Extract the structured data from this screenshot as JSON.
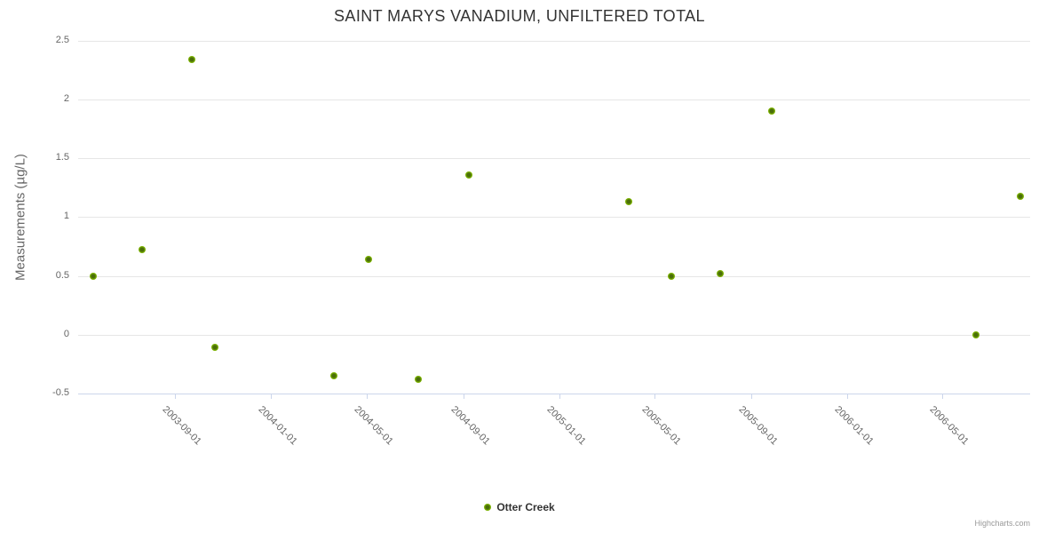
{
  "chart": {
    "title": "SAINT MARYS VANADIUM, UNFILTERED TOTAL",
    "credit": "Highcharts.com"
  },
  "legend": {
    "items": [
      {
        "label": "Otter Creek",
        "marker": "green-dot-icon"
      }
    ]
  },
  "colors": {
    "title_text": "#333333",
    "axis_label_text": "#666666",
    "gridline": "#e6e6e6",
    "axis_line": "#ccd6eb",
    "marker_outer": "#7db300",
    "marker_inner": "#4a6e0a",
    "legend_text": "#333333",
    "credit_text": "#999999"
  },
  "chart_data": {
    "type": "scatter",
    "title": "SAINT MARYS VANADIUM, UNFILTERED TOTAL",
    "xlabel": "",
    "ylabel": "Measurements (µg/L)",
    "ylim": [
      -0.5,
      2.5
    ],
    "grid": true,
    "legend_position": "bottom-center",
    "y_tick_labels": [
      "2.5",
      "2",
      "1.5",
      "1",
      "0.5",
      "0",
      "-0.5"
    ],
    "y_tick_values": [
      2.5,
      2.0,
      1.5,
      1.0,
      0.5,
      0.0,
      -0.5
    ],
    "x_tick_labels": [
      "2003-09-01",
      "2004-01-01",
      "2004-05-01",
      "2004-09-01",
      "2005-01-01",
      "2005-05-01",
      "2005-09-01",
      "2006-01-01",
      "2006-05-01"
    ],
    "series": [
      {
        "name": "Otter Creek",
        "color": "#7db300",
        "points": [
          {
            "date": "2003-05-20",
            "value": 0.5
          },
          {
            "date": "2003-07-21",
            "value": 0.72
          },
          {
            "date": "2003-09-22",
            "value": 2.34
          },
          {
            "date": "2003-10-22",
            "value": -0.11
          },
          {
            "date": "2004-03-21",
            "value": -0.35
          },
          {
            "date": "2004-05-04",
            "value": 0.64
          },
          {
            "date": "2004-07-06",
            "value": -0.38
          },
          {
            "date": "2004-09-08",
            "value": 1.36
          },
          {
            "date": "2005-03-30",
            "value": 1.13
          },
          {
            "date": "2005-05-23",
            "value": 0.5
          },
          {
            "date": "2005-07-24",
            "value": 0.52
          },
          {
            "date": "2005-09-27",
            "value": 1.9
          },
          {
            "date": "2006-06-13",
            "value": 0.0
          },
          {
            "date": "2006-08-08",
            "value": 1.18
          }
        ]
      }
    ]
  }
}
